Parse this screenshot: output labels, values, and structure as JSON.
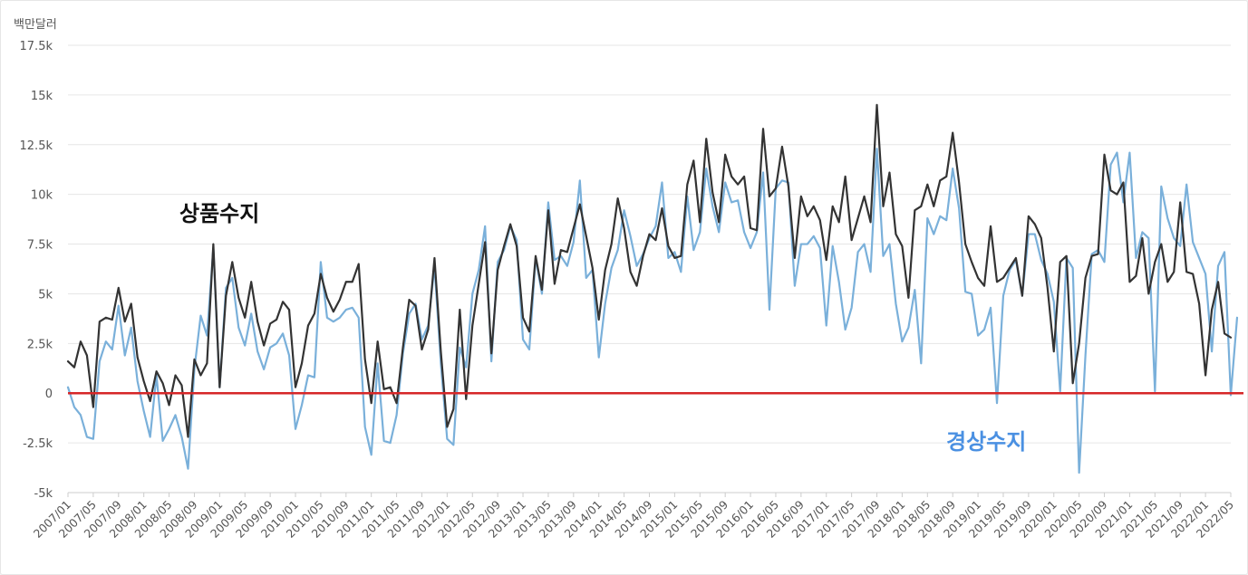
{
  "chart_data": {
    "type": "line",
    "unit_label": "백만달러",
    "ylim": [
      -5000,
      17500
    ],
    "yticks": [
      -5000,
      -2500,
      0,
      2500,
      5000,
      7500,
      10000,
      12500,
      15000,
      17500
    ],
    "ytick_labels": [
      "-5k",
      "-2.5k",
      "0",
      "2.5k",
      "5k",
      "7.5k",
      "10k",
      "12.5k",
      "15k",
      "17.5k"
    ],
    "x_start": "2007/01",
    "n_months": 185,
    "x_tick_labels": [
      "2007/01",
      "2007/05",
      "2007/09",
      "2008/01",
      "2008/05",
      "2008/09",
      "2009/01",
      "2009/05",
      "2009/09",
      "2010/01",
      "2010/05",
      "2010/09",
      "2011/01",
      "2011/05",
      "2011/09",
      "2012/01",
      "2012/05",
      "2012/09",
      "2013/01",
      "2013/05",
      "2013/09",
      "2014/01",
      "2014/05",
      "2014/09",
      "2015/01",
      "2015/05",
      "2015/09",
      "2016/01",
      "2016/05",
      "2016/09",
      "2017/01",
      "2017/05",
      "2017/09",
      "2018/01",
      "2018/05",
      "2018/09",
      "2019/01",
      "2019/05",
      "2019/09",
      "2020/01",
      "2020/05",
      "2020/09",
      "2021/01",
      "2021/05",
      "2021/09",
      "2022/01",
      "2022/05"
    ],
    "zero_line_color": "#d62728",
    "series": [
      {
        "name": "상품수지",
        "color": "#333333",
        "label_color": "#111111",
        "values": [
          1600,
          1300,
          2600,
          1900,
          -700,
          3600,
          3800,
          3700,
          5300,
          3600,
          4500,
          1800,
          600,
          -400,
          1100,
          500,
          -600,
          900,
          400,
          -2200,
          1700,
          900,
          1500,
          7500,
          300,
          4900,
          6600,
          4800,
          3800,
          5600,
          3600,
          2400,
          3500,
          3700,
          4600,
          4200,
          300,
          1500,
          3400,
          4000,
          6000,
          4800,
          4100,
          4700,
          5600,
          5600,
          6500,
          1700,
          -500,
          2600,
          200,
          300,
          -500,
          2300,
          4700,
          4400,
          2200,
          3200,
          6800,
          2100,
          -1700,
          -800,
          4200,
          -300,
          3400,
          5500,
          7600,
          2000,
          6200,
          7400,
          8500,
          7400,
          3800,
          3100,
          6900,
          5200,
          9200,
          5500,
          7200,
          7100,
          8300,
          9500,
          7900,
          6300,
          3700,
          6200,
          7500,
          9800,
          8300,
          6100,
          5400,
          6900,
          8000,
          7700,
          9300,
          7400,
          6800,
          6900,
          10500,
          11700,
          8600,
          12800,
          10100,
          8600,
          12000,
          10900,
          10500,
          10900,
          8300,
          8200,
          13300,
          9900,
          10300,
          12400,
          10400,
          6800,
          9900,
          8900,
          9400,
          8700,
          6700,
          9400,
          8600,
          10900,
          7700,
          8800,
          9900,
          8600,
          14500,
          9400,
          11100,
          8000,
          7400,
          4800,
          9200,
          9400,
          10500,
          9400,
          10700,
          10900,
          13100,
          10600,
          7500,
          6600,
          5800,
          5400,
          8400,
          5600,
          5800,
          6300,
          6800,
          4900,
          8900,
          8500,
          7800,
          5300,
          2100,
          6600,
          6900,
          500,
          2500,
          5800,
          6900,
          7000,
          12000,
          10200,
          10000,
          10600,
          5600,
          5900,
          7800,
          5000,
          6600,
          7500,
          5600,
          6100,
          9600,
          6100,
          6000,
          4500,
          900,
          4200,
          5600,
          3000,
          2800
        ]
      },
      {
        "name": "경상수지",
        "color": "#7ab0da",
        "label_color": "#4a90e2",
        "values": [
          300,
          -700,
          -1100,
          -2200,
          -2300,
          1600,
          2600,
          2200,
          4400,
          1900,
          3300,
          600,
          -900,
          -2200,
          900,
          -2400,
          -1800,
          -1100,
          -2200,
          -3800,
          1200,
          3900,
          2900,
          7300,
          300,
          5300,
          5800,
          3300,
          2400,
          4000,
          2100,
          1200,
          2300,
          2500,
          3000,
          1900,
          -1800,
          -600,
          900,
          800,
          6600,
          3800,
          3600,
          3800,
          4200,
          4300,
          3800,
          -1700,
          -3100,
          1500,
          -2400,
          -2500,
          -1100,
          2000,
          4000,
          4500,
          2700,
          3400,
          6400,
          1500,
          -2300,
          -2600,
          2300,
          1300,
          5000,
          6200,
          8400,
          1600,
          6600,
          7200,
          8400,
          7700,
          2700,
          2200,
          6800,
          5000,
          9600,
          6700,
          6900,
          6400,
          7600,
          10700,
          5800,
          6200,
          1800,
          4500,
          6300,
          7200,
          9200,
          7900,
          6400,
          7000,
          7800,
          8400,
          10600,
          6800,
          7100,
          6100,
          9900,
          7200,
          8100,
          11300,
          9400,
          8100,
          10600,
          9600,
          9700,
          8100,
          7300,
          8100,
          11100,
          4200,
          10300,
          10700,
          10600,
          5400,
          7500,
          7500,
          7900,
          7300,
          3400,
          7400,
          5600,
          3200,
          4300,
          7100,
          7500,
          6100,
          12300,
          6900,
          7500,
          4500,
          2600,
          3300,
          5200,
          1500,
          8800,
          8000,
          8900,
          8700,
          11300,
          9300,
          5100,
          5000,
          2900,
          3200,
          4300,
          -500,
          4900,
          6200,
          6700,
          4900,
          8000,
          8000,
          6700,
          6000,
          4600,
          100,
          6800,
          6300,
          -4000,
          1900,
          7000,
          7200,
          6600,
          11500,
          12100,
          9600,
          12100,
          6800,
          8100,
          7800,
          100,
          10400,
          8800,
          7800,
          7400,
          10500,
          7600,
          6800,
          6000,
          2100,
          6400,
          7100,
          -100,
          3800
        ]
      }
    ],
    "annotations": [
      {
        "text": "상품수지",
        "series": "상품수지"
      },
      {
        "text": "경상수지",
        "series": "경상수지"
      }
    ]
  }
}
